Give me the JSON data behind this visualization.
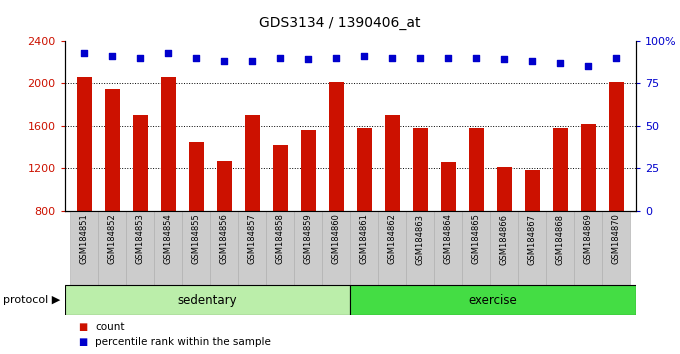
{
  "title": "GDS3134 / 1390406_at",
  "samples": [
    "GSM184851",
    "GSM184852",
    "GSM184853",
    "GSM184854",
    "GSM184855",
    "GSM184856",
    "GSM184857",
    "GSM184858",
    "GSM184859",
    "GSM184860",
    "GSM184861",
    "GSM184862",
    "GSM184863",
    "GSM184864",
    "GSM184865",
    "GSM184866",
    "GSM184867",
    "GSM184868",
    "GSM184869",
    "GSM184870"
  ],
  "counts": [
    2060,
    1950,
    1700,
    2060,
    1450,
    1270,
    1700,
    1420,
    1560,
    2010,
    1580,
    1700,
    1580,
    1260,
    1580,
    1210,
    1180,
    1580,
    1620,
    2010
  ],
  "percentile_ranks": [
    93,
    91,
    90,
    93,
    90,
    88,
    88,
    90,
    89,
    90,
    91,
    90,
    90,
    90,
    90,
    89,
    88,
    87,
    85,
    90
  ],
  "groups": [
    "sedentary",
    "sedentary",
    "sedentary",
    "sedentary",
    "sedentary",
    "sedentary",
    "sedentary",
    "sedentary",
    "sedentary",
    "sedentary",
    "exercise",
    "exercise",
    "exercise",
    "exercise",
    "exercise",
    "exercise",
    "exercise",
    "exercise",
    "exercise",
    "exercise"
  ],
  "bar_color": "#cc1100",
  "dot_color": "#0000cc",
  "sedentary_color": "#bbeeaa",
  "exercise_color": "#44dd44",
  "ylim_left": [
    800,
    2400
  ],
  "ylim_right": [
    0,
    100
  ],
  "yticks_left": [
    800,
    1200,
    1600,
    2000,
    2400
  ],
  "yticks_right": [
    0,
    25,
    50,
    75,
    100
  ],
  "ytick_labels_right": [
    "0",
    "25",
    "50",
    "75",
    "100%"
  ],
  "grid_values": [
    1200,
    1600,
    2000
  ],
  "protocol_label": "protocol",
  "legend_count_label": "count",
  "legend_pct_label": "percentile rank within the sample",
  "xtick_bg_color": "#cccccc",
  "xtick_border_color": "#aaaaaa"
}
